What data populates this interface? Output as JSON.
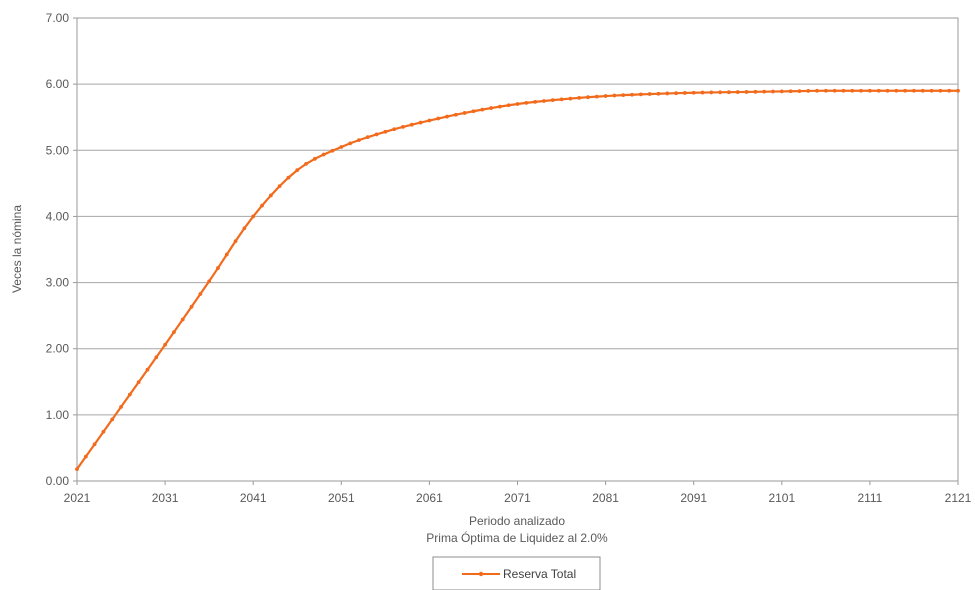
{
  "chart_data": {
    "type": "line",
    "xlabel": "Periodo analizado",
    "subtitle": "Prima Óptima de Liquidez al 2.0%",
    "ylabel": "Veces la nómina",
    "xlim": [
      2021,
      2121
    ],
    "ylim": [
      0,
      7
    ],
    "x_ticks": [
      "2021",
      "2031",
      "2041",
      "2051",
      "2061",
      "2071",
      "2081",
      "2091",
      "2101",
      "2111",
      "2121"
    ],
    "y_ticks": [
      "0.00",
      "1.00",
      "2.00",
      "3.00",
      "4.00",
      "5.00",
      "6.00",
      "7.00"
    ],
    "grid": "horizontal",
    "legend_position": "bottom-center",
    "series": [
      {
        "name": "Reserva Total",
        "color": "#F26B1D",
        "x": [
          2021,
          2026,
          2031,
          2036,
          2041,
          2046,
          2051,
          2056,
          2061,
          2066,
          2071,
          2076,
          2081,
          2086,
          2091,
          2096,
          2101,
          2106,
          2111,
          2116,
          2121
        ],
        "y": [
          0.18,
          1.12,
          2.06,
          3.02,
          4.0,
          4.7,
          5.05,
          5.28,
          5.45,
          5.59,
          5.7,
          5.77,
          5.82,
          5.85,
          5.87,
          5.88,
          5.89,
          5.9,
          5.9,
          5.9,
          5.9
        ]
      }
    ]
  }
}
